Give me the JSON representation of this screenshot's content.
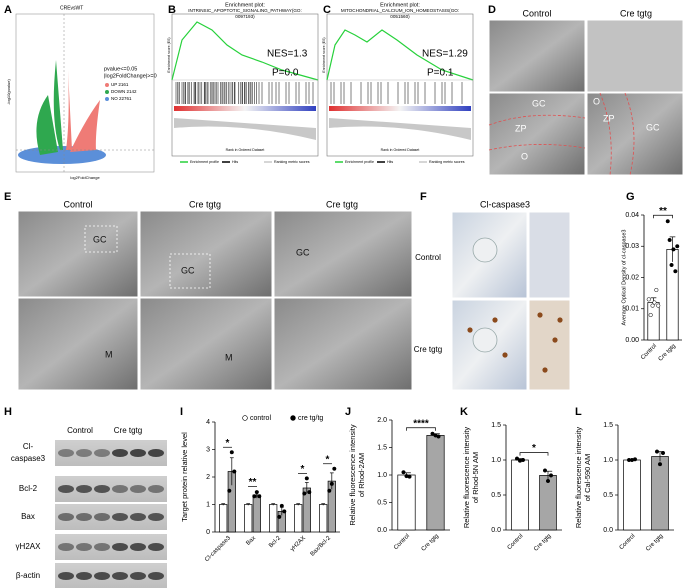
{
  "panel_labels": [
    "A",
    "B",
    "C",
    "D",
    "E",
    "F",
    "G",
    "H",
    "I",
    "J",
    "K",
    "L"
  ],
  "volcano": {
    "title": "CREvsWT",
    "x_label": "log2FoldChange",
    "y_label": "-log10(pvalue)",
    "legend_title": [
      "pvalue<=0.05",
      "|log2FoldChange|>=0"
    ],
    "legend": [
      "UP 2161",
      "DOWN 2142",
      "NO 22761"
    ]
  },
  "gsea": [
    {
      "title": "Enrichment plot:",
      "pathway": [
        "INTRINSIC_APOPTOTIC_SIGNALING_PATHWAY(GO:",
        "0097193)"
      ],
      "nes": "NES=1.3",
      "p": "P=0.0",
      "y_label": "Enrichment score (ES)",
      "x_label": "Rank in Ordered Dataset",
      "legend": [
        "Enrichment profile",
        "Hits",
        "Ranking metric scores"
      ]
    },
    {
      "title": "Enrichment plot:",
      "pathway": [
        "MITOCHONDRIAL_CALCIUM_ION_HOMEOSTASIS(GO:",
        "0051560)"
      ],
      "nes": "NES=1.29",
      "p": "P=0.1",
      "y_label": "Enrichment score (ES)",
      "x_label": "Rank in Ordered Dataset",
      "legend": [
        "Enrichment profile",
        "Hits",
        "Ranking metric scores"
      ]
    }
  ],
  "tem_d": {
    "columns": [
      "Control",
      "Cre tgtg"
    ],
    "labels": [
      "GC",
      "ZP",
      "O",
      "O",
      "ZP",
      "GC"
    ]
  },
  "tem_e": {
    "columns": [
      "Control",
      "Cre tgtg",
      "Cre tgtg"
    ],
    "labels": [
      "GC",
      "GC",
      "GC",
      "M",
      "M"
    ]
  },
  "ihc_f": {
    "title": "Cl-caspase3",
    "rows": [
      "Control",
      "Cre tgtg"
    ]
  },
  "blot_h": {
    "columns": [
      "Control",
      "Cre tgtg"
    ],
    "rows": [
      [
        "Cl-",
        "caspase3"
      ],
      [
        "Bcl-2"
      ],
      [
        "Bax"
      ],
      [
        "γH2AX"
      ],
      [
        "β-actin"
      ]
    ]
  },
  "chart_data": [
    {
      "type": "bar",
      "y_label": "Average Optical Density of cl-caspase3",
      "categories": [
        "Control",
        "Cre tgtg"
      ],
      "series": [
        {
          "colors": [
            "#ffffff",
            "#ffffff"
          ],
          "point_colors": [
            "#ffffff",
            "#000000"
          ],
          "values": [
            0.012,
            0.029
          ],
          "errors": [
            0.0015,
            0.004
          ],
          "points": [
            [
              0.013,
              0.008,
              0.011,
              0.012,
              0.016,
              0.011
            ],
            [
              0.038,
              0.032,
              0.024,
              0.029,
              0.022,
              0.03
            ]
          ]
        }
      ],
      "ylim": [
        0,
        0.04
      ],
      "yticks": [
        {
          "value": 0,
          "label": "0.00"
        },
        {
          "value": 0.01,
          "label": "0.01"
        },
        {
          "value": 0.02,
          "label": "0.02"
        },
        {
          "value": 0.03,
          "label": "0.03"
        },
        {
          "value": 0.04,
          "label": "0.04"
        }
      ],
      "significance": [
        "**"
      ]
    },
    {
      "type": "bar",
      "y_label": "Target protein relative level",
      "categories": [
        "Cl-caspase3",
        "Bax",
        "Bcl-2",
        "γH2AX",
        "Bax/Bcl-2"
      ],
      "series": [
        {
          "name": "control",
          "color": "#ffffff",
          "point_color": "#ffffff",
          "values": [
            1,
            1,
            1,
            1,
            1
          ],
          "errors": [
            0.03,
            0.03,
            0.03,
            0.03,
            0.03
          ]
        },
        {
          "name": "cre tg/tg",
          "color": "#a6a6a6",
          "point_color": "#000000",
          "values": [
            2.2,
            1.35,
            0.75,
            1.6,
            1.85
          ],
          "errors": [
            0.5,
            0.12,
            0.15,
            0.2,
            0.3
          ],
          "points": [
            [
              1.5,
              2.9,
              2.2
            ],
            [
              1.3,
              1.45,
              1.3
            ],
            [
              0.55,
              0.95,
              0.75
            ],
            [
              1.4,
              1.95,
              1.45
            ],
            [
              1.5,
              1.75,
              2.3
            ]
          ]
        }
      ],
      "ylim": [
        0,
        4
      ],
      "yticks": [
        0,
        1,
        2,
        3,
        4
      ],
      "significance": [
        "*",
        "**",
        null,
        "*",
        "*"
      ],
      "legend": "top"
    },
    {
      "type": "bar",
      "y_label": [
        "Relative fluorescence intensity",
        "of Rhod-2AM"
      ],
      "categories": [
        "Control",
        "Cre tgtg"
      ],
      "series": [
        {
          "colors": [
            "#ffffff",
            "#a6a6a6"
          ],
          "point_colors": [
            "#000000",
            "#000000"
          ],
          "values": [
            1.0,
            1.72
          ],
          "errors": [
            0.04,
            0.03
          ],
          "points": [
            [
              1.05,
              0.98,
              0.97
            ],
            [
              1.75,
              1.72,
              1.7
            ]
          ]
        }
      ],
      "ylim": [
        0,
        2
      ],
      "yticks": [
        {
          "value": 0,
          "label": "0.0"
        },
        {
          "value": 0.5,
          "label": "0.5"
        },
        {
          "value": 1,
          "label": "1.0"
        },
        {
          "value": 1.5,
          "label": "1.5"
        },
        {
          "value": 2,
          "label": "2.0"
        }
      ],
      "significance": [
        "****"
      ]
    },
    {
      "type": "bar",
      "y_label": [
        "Relative fluorescence intensity",
        "of Rhod-5N AM"
      ],
      "categories": [
        "Control",
        "Cre tgtg"
      ],
      "series": [
        {
          "colors": [
            "#ffffff",
            "#a6a6a6"
          ],
          "point_colors": [
            "#000000",
            "#000000"
          ],
          "values": [
            1.0,
            0.78
          ],
          "errors": [
            0.02,
            0.06
          ],
          "points": [
            [
              1.02,
              0.99,
              1.0
            ],
            [
              0.85,
              0.7,
              0.78
            ]
          ]
        }
      ],
      "ylim": [
        0,
        1.5
      ],
      "yticks": [
        {
          "value": 0,
          "label": "0.0"
        },
        {
          "value": 0.5,
          "label": "0.5"
        },
        {
          "value": 1,
          "label": "1.0"
        },
        {
          "value": 1.5,
          "label": "1.5"
        }
      ],
      "significance": [
        "*"
      ]
    },
    {
      "type": "bar",
      "y_label": [
        "Relative fluorescence intensity",
        "of Cal-590 AM"
      ],
      "categories": [
        "Control",
        "Cre tgtg"
      ],
      "series": [
        {
          "colors": [
            "#ffffff",
            "#a6a6a6"
          ],
          "point_colors": [
            "#000000",
            "#000000"
          ],
          "values": [
            1.0,
            1.05
          ],
          "errors": [
            0.01,
            0.07
          ],
          "points": [
            [
              1.0,
              1.0,
              1.01
            ],
            [
              1.12,
              0.94,
              1.1
            ]
          ]
        }
      ],
      "ylim": [
        0,
        1.5
      ],
      "yticks": [
        {
          "value": 0,
          "label": "0.0"
        },
        {
          "value": 0.5,
          "label": "0.5"
        },
        {
          "value": 1,
          "label": "1.0"
        },
        {
          "value": 1.5,
          "label": "1.5"
        }
      ]
    }
  ]
}
